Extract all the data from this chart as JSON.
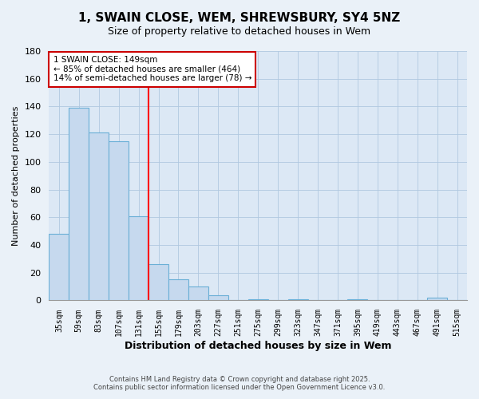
{
  "title": "1, SWAIN CLOSE, WEM, SHREWSBURY, SY4 5NZ",
  "subtitle": "Size of property relative to detached houses in Wem",
  "xlabel": "Distribution of detached houses by size in Wem",
  "ylabel": "Number of detached properties",
  "bins": [
    "35sqm",
    "59sqm",
    "83sqm",
    "107sqm",
    "131sqm",
    "155sqm",
    "179sqm",
    "203sqm",
    "227sqm",
    "251sqm",
    "275sqm",
    "299sqm",
    "323sqm",
    "347sqm",
    "371sqm",
    "395sqm",
    "419sqm",
    "443sqm",
    "467sqm",
    "491sqm",
    "515sqm"
  ],
  "values": [
    48,
    139,
    121,
    115,
    61,
    26,
    15,
    10,
    4,
    0,
    1,
    0,
    1,
    0,
    0,
    1,
    0,
    0,
    0,
    2,
    0
  ],
  "bar_color": "#c6d9ee",
  "bar_edge_color": "#6aafd6",
  "vline_label": "1 SWAIN CLOSE: 149sqm",
  "annotation_line1": "← 85% of detached houses are smaller (464)",
  "annotation_line2": "14% of semi-detached houses are larger (78) →",
  "ylim": [
    0,
    180
  ],
  "yticks": [
    0,
    20,
    40,
    60,
    80,
    100,
    120,
    140,
    160,
    180
  ],
  "bg_color": "#dce8f5",
  "fig_bg_color": "#eaf1f8",
  "footnote1": "Contains HM Land Registry data © Crown copyright and database right 2025.",
  "footnote2": "Contains public sector information licensed under the Open Government Licence v3.0.",
  "vline_pos": 4.5
}
